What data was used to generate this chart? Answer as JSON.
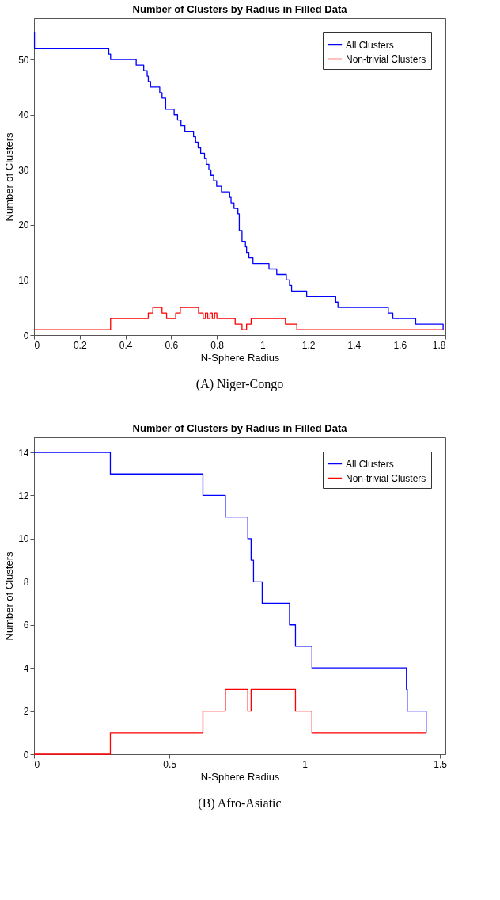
{
  "chart_data": [
    {
      "type": "step",
      "title": "Number of Clusters by Radius in Filled Data",
      "xlabel": "N-Sphere Radius",
      "ylabel": "Number of Clusters",
      "xlim": [
        0,
        1.8
      ],
      "ylim": [
        0,
        57.5
      ],
      "xticks": [
        0,
        0.2,
        0.4,
        0.6,
        0.8,
        1,
        1.2,
        1.4,
        1.6,
        1.8
      ],
      "yticks": [
        0,
        10,
        20,
        30,
        40,
        50
      ],
      "grid": false,
      "legend": "top right",
      "line_style": "solid",
      "marker": "none",
      "annotations": [
        "(A) Niger-Congo"
      ],
      "series": [
        {
          "name": "All Clusters",
          "color": "#0000ff",
          "x": [
            0,
            0.002,
            0.327,
            0.335,
            0.447,
            0.48,
            0.495,
            0.5,
            0.51,
            0.55,
            0.56,
            0.576,
            0.613,
            0.628,
            0.643,
            0.66,
            0.698,
            0.707,
            0.718,
            0.729,
            0.746,
            0.754,
            0.765,
            0.774,
            0.786,
            0.799,
            0.82,
            0.856,
            0.862,
            0.875,
            0.892,
            0.898,
            0.91,
            0.925,
            0.93,
            0.94,
            0.958,
            1.028,
            1.062,
            1.104,
            1.118,
            1.127,
            1.193,
            1.32,
            1.33,
            1.55,
            1.57,
            1.67,
            1.79
          ],
          "values": [
            55,
            52,
            51,
            50,
            49,
            48,
            47,
            46,
            45,
            44,
            43,
            41,
            40,
            39,
            38,
            37,
            36,
            35,
            34,
            33,
            32,
            31,
            30,
            29,
            28,
            27,
            26,
            25,
            24,
            23,
            22,
            19,
            17,
            16,
            15,
            14,
            13,
            12,
            11,
            10,
            9,
            8,
            7,
            6,
            5,
            4,
            3,
            2,
            1
          ]
        },
        {
          "name": "Non-trivial Clusters",
          "color": "#ff0000",
          "x": [
            0,
            0.335,
            0.5,
            0.52,
            0.56,
            0.58,
            0.62,
            0.64,
            0.72,
            0.74,
            0.75,
            0.76,
            0.77,
            0.78,
            0.79,
            0.8,
            0.88,
            0.91,
            0.93,
            0.95,
            1.1,
            1.15,
            1.79
          ],
          "values": [
            1,
            3,
            4,
            5,
            4,
            3,
            4,
            5,
            4,
            3,
            4,
            3,
            4,
            3,
            4,
            3,
            2,
            1,
            2,
            3,
            2,
            1,
            1
          ]
        }
      ]
    },
    {
      "type": "step",
      "title": "Number of Clusters by Radius in Filled Data",
      "xlabel": "N-Sphere Radius",
      "ylabel": "Number of Clusters",
      "xlim": [
        0,
        1.52
      ],
      "ylim": [
        0,
        14.7
      ],
      "xticks": [
        0,
        0.5,
        1,
        1.5
      ],
      "yticks": [
        0,
        2,
        4,
        6,
        8,
        10,
        12,
        14
      ],
      "grid": false,
      "legend": "top right",
      "line_style": "solid",
      "marker": "none",
      "annotations": [
        "(B) Afro-Asiatic"
      ],
      "series": [
        {
          "name": "All Clusters",
          "color": "#0000ff",
          "x": [
            0,
            0.282,
            0.624,
            0.707,
            0.79,
            0.802,
            0.811,
            0.843,
            0.944,
            0.966,
            1.027,
            1.376,
            1.379,
            1.449
          ],
          "values": [
            14,
            13,
            12,
            11,
            10,
            9,
            8,
            7,
            6,
            5,
            4,
            3,
            2,
            1
          ]
        },
        {
          "name": "Non-trivial Clusters",
          "color": "#ff0000",
          "x": [
            0,
            0.282,
            0.624,
            0.707,
            0.79,
            0.802,
            0.966,
            1.027,
            1.449
          ],
          "values": [
            0,
            1,
            2,
            3,
            2,
            3,
            2,
            1,
            1
          ]
        }
      ]
    }
  ]
}
